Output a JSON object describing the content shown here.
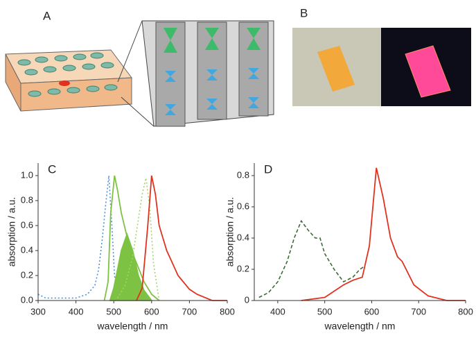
{
  "illustration_labels": {
    "a": "A",
    "b": "B"
  },
  "chart_data": [
    {
      "type": "line",
      "title": "C",
      "xlabel": "wavelength / nm",
      "ylabel": "absorption / a.u.",
      "xlim": [
        300,
        800
      ],
      "ylim": [
        0,
        1.1
      ],
      "xticks": [
        300,
        400,
        500,
        600,
        700,
        800
      ],
      "yticks": [
        {
          "value": 0,
          "label": "0.0"
        },
        0.2,
        0.4,
        0.6,
        0.8,
        {
          "value": 1,
          "label": "1.0"
        }
      ],
      "series": [
        {
          "color": "#4a90d9",
          "style": "dotted",
          "x": [
            300,
            320,
            350,
            400,
            430,
            450,
            460,
            470,
            478,
            487,
            495,
            502,
            510,
            530
          ],
          "values": [
            0.05,
            0.02,
            0.02,
            0.02,
            0.05,
            0.12,
            0.25,
            0.5,
            0.75,
            1.0,
            0.6,
            0.2,
            0.03,
            0
          ]
        },
        {
          "color": "#7dc242",
          "style": "solid",
          "x": [
            475,
            485,
            492,
            502,
            510,
            520,
            540,
            560,
            580,
            600,
            620
          ],
          "values": [
            0,
            0.15,
            0.7,
            1.0,
            0.88,
            0.7,
            0.45,
            0.3,
            0.15,
            0.05,
            0
          ]
        },
        {
          "color": "#7dc242",
          "style": "solid",
          "fill": true,
          "x": [
            490,
            500,
            510,
            520,
            535,
            550,
            565,
            580,
            600
          ],
          "values": [
            0,
            0.1,
            0.25,
            0.4,
            0.53,
            0.4,
            0.2,
            0.08,
            0
          ]
        },
        {
          "color": "#a6d46a",
          "style": "dotted",
          "x": [
            510,
            530,
            550,
            565,
            575,
            585,
            595,
            605,
            620
          ],
          "values": [
            0.02,
            0.12,
            0.35,
            0.65,
            0.85,
            0.98,
            0.75,
            0.3,
            0
          ]
        },
        {
          "color": "#e0321e",
          "style": "solid",
          "x": [
            560,
            575,
            590,
            600,
            610,
            620,
            640,
            670,
            700,
            720,
            760,
            800
          ],
          "values": [
            0,
            0.1,
            0.6,
            1.0,
            0.85,
            0.6,
            0.4,
            0.2,
            0.09,
            0.05,
            0,
            0
          ]
        }
      ]
    },
    {
      "type": "line",
      "title": "D",
      "xlabel": "wavelength / nm",
      "ylabel": "absorption / a.u.",
      "xlim": [
        350,
        800
      ],
      "ylim": [
        0,
        0.88
      ],
      "xticks": [
        400,
        500,
        600,
        700,
        800
      ],
      "yticks": [
        0,
        0.2,
        0.4,
        0.6,
        0.8
      ],
      "series": [
        {
          "color": "#3a6b35",
          "style": "dashed",
          "x": [
            360,
            380,
            400,
            420,
            435,
            450,
            465,
            480,
            490,
            500,
            520,
            540,
            560,
            575,
            585
          ],
          "values": [
            0.02,
            0.05,
            0.12,
            0.25,
            0.4,
            0.51,
            0.45,
            0.4,
            0.4,
            0.3,
            0.2,
            0.12,
            0.15,
            0.2,
            0.22
          ]
        },
        {
          "color": "#e0321e",
          "style": "solid",
          "x": [
            450,
            500,
            540,
            560,
            580,
            595,
            610,
            625,
            640,
            655,
            665,
            690,
            720,
            760,
            800
          ],
          "values": [
            0,
            0.02,
            0.1,
            0.13,
            0.15,
            0.35,
            0.85,
            0.65,
            0.4,
            0.28,
            0.25,
            0.1,
            0.03,
            0,
            0
          ]
        }
      ]
    }
  ]
}
